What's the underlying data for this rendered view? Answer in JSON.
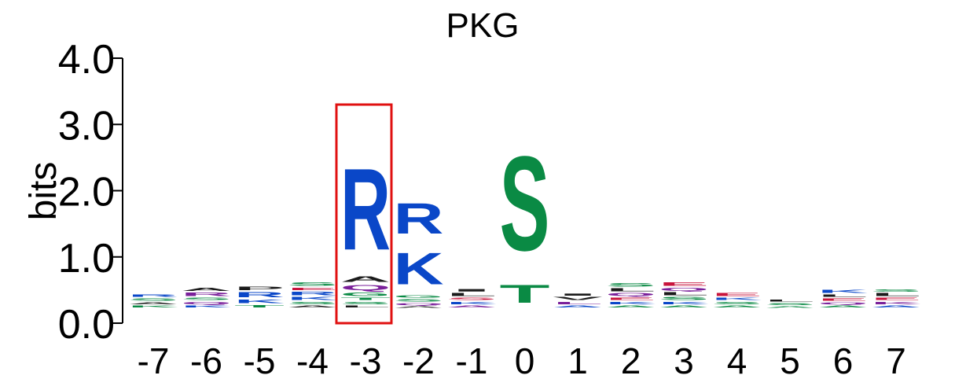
{
  "chart_data": {
    "type": "sequence-logo",
    "title": "PKG",
    "ylabel": "bits",
    "ylim": [
      0,
      4.0
    ],
    "y_ticks": [
      "0.0",
      "1.0",
      "2.0",
      "3.0",
      "4.0"
    ],
    "positions": [
      "-7",
      "-6",
      "-5",
      "-4",
      "-3",
      "-2",
      "-1",
      "0",
      "1",
      "2",
      "3",
      "4",
      "5",
      "6",
      "7"
    ],
    "highlight_position": "-3",
    "highlight_color": "#e01010",
    "colors": {
      "basic": "#0a47c8",
      "polar": "#0a8a44",
      "acidic": "#c8143c",
      "amide": "#7a1f9a",
      "hydrophobic": "#1a1a1a"
    },
    "stacks": [
      {
        "position": "-7",
        "letters": [
          {
            "aa": "K",
            "bits": 0.05,
            "group": "polar"
          },
          {
            "aa": "A",
            "bits": 0.05,
            "group": "hydrophobic"
          },
          {
            "aa": "S",
            "bits": 0.06,
            "group": "polar"
          },
          {
            "aa": "R",
            "bits": 0.06,
            "group": "basic"
          }
        ]
      },
      {
        "position": "-6",
        "letters": [
          {
            "aa": "K",
            "bits": 0.05,
            "group": "basic"
          },
          {
            "aa": "Q",
            "bits": 0.06,
            "group": "amide"
          },
          {
            "aa": "S",
            "bits": 0.06,
            "group": "polar"
          },
          {
            "aa": "R",
            "bits": 0.08,
            "group": "amide"
          },
          {
            "aa": "A",
            "bits": 0.07,
            "group": "hydrophobic"
          }
        ]
      },
      {
        "position": "-5",
        "letters": [
          {
            "aa": "T",
            "bits": 0.06,
            "group": "polar"
          },
          {
            "aa": "K",
            "bits": 0.08,
            "group": "basic"
          },
          {
            "aa": "R",
            "bits": 0.12,
            "group": "basic"
          },
          {
            "aa": "P",
            "bits": 0.08,
            "group": "hydrophobic"
          }
        ]
      },
      {
        "position": "-4",
        "letters": [
          {
            "aa": "A",
            "bits": 0.05,
            "group": "hydrophobic"
          },
          {
            "aa": "S",
            "bits": 0.06,
            "group": "polar"
          },
          {
            "aa": "K",
            "bits": 0.07,
            "group": "basic"
          },
          {
            "aa": "R",
            "bits": 0.08,
            "group": "basic"
          },
          {
            "aa": "E",
            "bits": 0.06,
            "group": "acidic"
          },
          {
            "aa": "S",
            "bits": 0.08,
            "group": "polar"
          }
        ]
      },
      {
        "position": "-3",
        "letters": [
          {
            "aa": "L",
            "bits": 0.05,
            "group": "hydrophobic"
          },
          {
            "aa": "S",
            "bits": 0.06,
            "group": "polar"
          },
          {
            "aa": "T",
            "bits": 0.06,
            "group": "polar"
          },
          {
            "aa": "G",
            "bits": 0.08,
            "group": "polar"
          },
          {
            "aa": "Q",
            "bits": 0.12,
            "group": "amide"
          },
          {
            "aa": "A",
            "bits": 0.13,
            "group": "hydrophobic"
          },
          {
            "aa": "R",
            "bits": 1.97,
            "group": "basic"
          }
        ]
      },
      {
        "position": "-2",
        "letters": [
          {
            "aa": "A",
            "bits": 0.04,
            "group": "hydrophobic"
          },
          {
            "aa": "Q",
            "bits": 0.05,
            "group": "amide"
          },
          {
            "aa": "S",
            "bits": 0.06,
            "group": "polar"
          },
          {
            "aa": "G",
            "bits": 0.06,
            "group": "polar"
          },
          {
            "aa": "K",
            "bits": 0.77,
            "group": "basic"
          },
          {
            "aa": "R",
            "bits": 0.74,
            "group": "basic"
          }
        ]
      },
      {
        "position": "-1",
        "letters": [
          {
            "aa": "A",
            "bits": 0.05,
            "group": "amide"
          },
          {
            "aa": "K",
            "bits": 0.06,
            "group": "basic"
          },
          {
            "aa": "S",
            "bits": 0.06,
            "group": "acidic"
          },
          {
            "aa": "L",
            "bits": 0.07,
            "group": "hydrophobic"
          },
          {
            "aa": "I",
            "bits": 0.06,
            "group": "hydrophobic"
          }
        ]
      },
      {
        "position": "0",
        "letters": [
          {
            "aa": "T",
            "bits": 0.43,
            "group": "polar"
          },
          {
            "aa": "S",
            "bits": 2.28,
            "group": "polar"
          }
        ]
      },
      {
        "position": "1",
        "letters": [
          {
            "aa": "A",
            "bits": 0.05,
            "group": "basic"
          },
          {
            "aa": "L",
            "bits": 0.06,
            "group": "amide"
          },
          {
            "aa": "V",
            "bits": 0.07,
            "group": "hydrophobic"
          },
          {
            "aa": "I",
            "bits": 0.05,
            "group": "hydrophobic"
          }
        ]
      },
      {
        "position": "2",
        "letters": [
          {
            "aa": "A",
            "bits": 0.05,
            "group": "polar"
          },
          {
            "aa": "K",
            "bits": 0.06,
            "group": "basic"
          },
          {
            "aa": "E",
            "bits": 0.06,
            "group": "acidic"
          },
          {
            "aa": "Q",
            "bits": 0.07,
            "group": "amide"
          },
          {
            "aa": "L",
            "bits": 0.07,
            "group": "hydrophobic"
          },
          {
            "aa": "S",
            "bits": 0.08,
            "group": "polar"
          }
        ]
      },
      {
        "position": "3",
        "letters": [
          {
            "aa": "A",
            "bits": 0.05,
            "group": "polar"
          },
          {
            "aa": "K",
            "bits": 0.06,
            "group": "basic"
          },
          {
            "aa": "S",
            "bits": 0.07,
            "group": "polar"
          },
          {
            "aa": "L",
            "bits": 0.07,
            "group": "hydrophobic"
          },
          {
            "aa": "Q",
            "bits": 0.07,
            "group": "amide"
          },
          {
            "aa": "E",
            "bits": 0.08,
            "group": "acidic"
          }
        ]
      },
      {
        "position": "4",
        "letters": [
          {
            "aa": "A",
            "bits": 0.05,
            "group": "polar"
          },
          {
            "aa": "S",
            "bits": 0.06,
            "group": "polar"
          },
          {
            "aa": "K",
            "bits": 0.06,
            "group": "basic"
          },
          {
            "aa": "E",
            "bits": 0.07,
            "group": "acidic"
          }
        ]
      },
      {
        "position": "5",
        "letters": [
          {
            "aa": "A",
            "bits": 0.04,
            "group": "polar"
          },
          {
            "aa": "S",
            "bits": 0.05,
            "group": "polar"
          },
          {
            "aa": "L",
            "bits": 0.05,
            "group": "hydrophobic"
          }
        ]
      },
      {
        "position": "6",
        "letters": [
          {
            "aa": "A",
            "bits": 0.05,
            "group": "polar"
          },
          {
            "aa": "Q",
            "bits": 0.05,
            "group": "amide"
          },
          {
            "aa": "E",
            "bits": 0.06,
            "group": "acidic"
          },
          {
            "aa": "L",
            "bits": 0.06,
            "group": "hydrophobic"
          },
          {
            "aa": "K",
            "bits": 0.07,
            "group": "basic"
          }
        ]
      },
      {
        "position": "7",
        "letters": [
          {
            "aa": "A",
            "bits": 0.05,
            "group": "basic"
          },
          {
            "aa": "K",
            "bits": 0.06,
            "group": "amide"
          },
          {
            "aa": "E",
            "bits": 0.06,
            "group": "acidic"
          },
          {
            "aa": "L",
            "bits": 0.07,
            "group": "hydrophobic"
          },
          {
            "aa": "S",
            "bits": 0.06,
            "group": "polar"
          }
        ]
      }
    ]
  }
}
